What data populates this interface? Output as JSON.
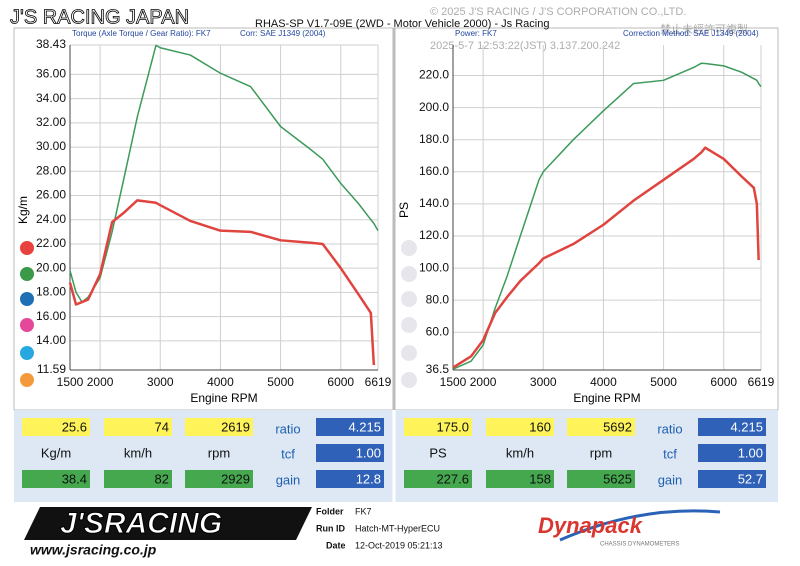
{
  "header": {
    "brand": "J'S RACING JAPAN",
    "software": "RHAS-SP V1.7-09E  (2WD - Motor Vehicle 2000) - Js Racing",
    "watermark": [
      "© 2025 J'S RACING / J'S CORPORATION CO.,LTD.",
      "禁止未經許可複製",
      "2025-5-7 12:53:22(JST) 3.137.200.242"
    ]
  },
  "chart_data": [
    {
      "type": "line",
      "title": "Torque (Axle Torque / Gear Ratio): FK7",
      "subtitle": "Corr: SAE J1349 (2004)",
      "x_label": "Engine RPM",
      "y_label": "Kg/m",
      "x": [
        1500,
        1600,
        1700,
        1800,
        2000,
        2200,
        2400,
        2619,
        2929,
        3000,
        3500,
        4000,
        4500,
        5000,
        5500,
        5700,
        6000,
        6300,
        6500,
        6550,
        6619
      ],
      "series": [
        {
          "color": "#3c9a5a",
          "values": [
            19.8,
            18.0,
            17.2,
            17.6,
            19.2,
            23.0,
            27.5,
            32.5,
            38.4,
            38.2,
            37.6,
            36.1,
            35.0,
            31.7,
            29.8,
            29.0,
            27.0,
            25.3,
            24.0,
            23.7,
            23.1
          ]
        },
        {
          "color": "#e0443f",
          "values": [
            18.8,
            17.0,
            17.2,
            17.4,
            19.5,
            23.8,
            24.6,
            25.6,
            25.4,
            25.2,
            23.9,
            23.1,
            23.0,
            22.3,
            22.1,
            22.0,
            20.0,
            17.8,
            16.3,
            12.0,
            null
          ]
        }
      ],
      "xlim": [
        1500,
        6619
      ],
      "xticks": [
        1500,
        2000,
        3000,
        4000,
        5000,
        6000,
        6619
      ],
      "ylim": [
        11.59,
        38.43
      ],
      "yticks": [
        11.59,
        {
          "value": 14,
          "label": "14.00"
        },
        {
          "value": 16,
          "label": "16.00"
        },
        {
          "value": 18,
          "label": "18.00"
        },
        {
          "value": 20,
          "label": "20.00"
        },
        {
          "value": 22,
          "label": "22.00"
        },
        {
          "value": 24,
          "label": "24.00"
        },
        {
          "value": 26,
          "label": "26.00"
        },
        {
          "value": 28,
          "label": "28.00"
        },
        {
          "value": 30,
          "label": "30.00"
        },
        {
          "value": 32,
          "label": "32.00"
        },
        {
          "value": 34,
          "label": "34.00"
        },
        {
          "value": 36,
          "label": "36.00"
        },
        38.43
      ],
      "grid": true
    },
    {
      "type": "line",
      "title": "Power: FK7",
      "subtitle": "Correction Method: SAE J1349 (2004)",
      "x_label": "Engine RPM",
      "y_label": "PS",
      "x": [
        1500,
        1800,
        2000,
        2200,
        2400,
        2619,
        2929,
        3000,
        3500,
        4000,
        4500,
        5000,
        5500,
        5625,
        5692,
        6000,
        6300,
        6500,
        6550,
        6580,
        6619
      ],
      "series": [
        {
          "color": "#3c9a5a",
          "values": [
            37,
            42,
            52,
            75,
            95,
            120,
            155,
            160,
            180,
            198,
            215,
            217,
            225,
            227.6,
            227.5,
            226,
            222,
            218,
            217,
            215,
            213
          ]
        },
        {
          "color": "#e0443f",
          "values": [
            38,
            45,
            55,
            72,
            82,
            92,
            103,
            106,
            115,
            127,
            142,
            155,
            168,
            172,
            175,
            168,
            157,
            150,
            140,
            105,
            null
          ]
        }
      ],
      "xlim": [
        1500,
        6619
      ],
      "xticks": [
        1500,
        2000,
        3000,
        4000,
        5000,
        6000,
        6619
      ],
      "ylim": [
        36.5,
        239
      ],
      "yticks": [
        36.5,
        {
          "value": 60,
          "label": "60.0"
        },
        {
          "value": 80,
          "label": "80.0"
        },
        {
          "value": 100,
          "label": "100.0"
        },
        {
          "value": 120,
          "label": "120.0"
        },
        {
          "value": 140,
          "label": "140.0"
        },
        {
          "value": 160,
          "label": "160.0"
        },
        {
          "value": 180,
          "label": "180.0"
        },
        {
          "value": 200,
          "label": "200.0"
        },
        {
          "value": 220,
          "label": "220.0"
        }
      ],
      "grid": true
    }
  ],
  "tables": [
    {
      "peak": [
        "25.6",
        "74",
        "2619"
      ],
      "ratio_label": "ratio",
      "ratio": "4.215",
      "units": [
        "Kg/m",
        "km/h",
        "rpm"
      ],
      "tcf_label": "tcf",
      "tcf": "1.00",
      "max": [
        "38.4",
        "82",
        "2929"
      ],
      "gain_label": "gain",
      "gain": "12.8"
    },
    {
      "peak": [
        "175.0",
        "160",
        "5692"
      ],
      "ratio_label": "ratio",
      "ratio": "4.215",
      "units": [
        "PS",
        "km/h",
        "rpm"
      ],
      "tcf_label": "tcf",
      "tcf": "1.00",
      "max": [
        "227.6",
        "158",
        "5625"
      ],
      "gain_label": "gain",
      "gain": "52.7"
    }
  ],
  "footer": {
    "logo": "J'SRACING",
    "url": "www.jsracing.co.jp",
    "folder_label": "Folder",
    "folder": "FK7",
    "run_label": "Run ID",
    "run": "Hatch-MT-HyperECU",
    "date_label": "Date",
    "date": "12-Oct-2019  05:21:13",
    "dyno": "Dynapack",
    "dyno_sub": "CHASSIS DYNAMOMETERS"
  }
}
